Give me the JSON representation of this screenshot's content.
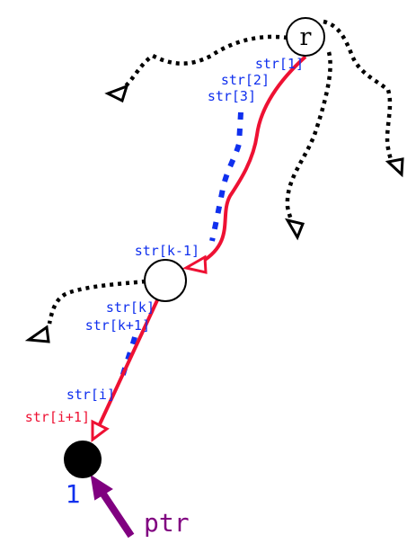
{
  "nodes": {
    "root": {
      "label": "r"
    },
    "middle": {
      "label": ""
    },
    "leaf": {
      "label": "1"
    }
  },
  "edge_labels": {
    "root_1": "str[1]",
    "root_2": "str[2]",
    "root_3": "str[3]",
    "mid_in": "str[k-1]",
    "mid_out_1": "str[k]",
    "mid_out_2": "str[k+1]",
    "leaf_in_1": "str[i]",
    "leaf_in_2": "str[i+1]"
  },
  "pointer": {
    "label": "ptr"
  },
  "colors": {
    "path_red": "#ee1133",
    "label_blue": "#1030ee",
    "pointer_purple": "#800080",
    "dotted_black": "#000000",
    "dotted_blue": "#1030ee"
  }
}
